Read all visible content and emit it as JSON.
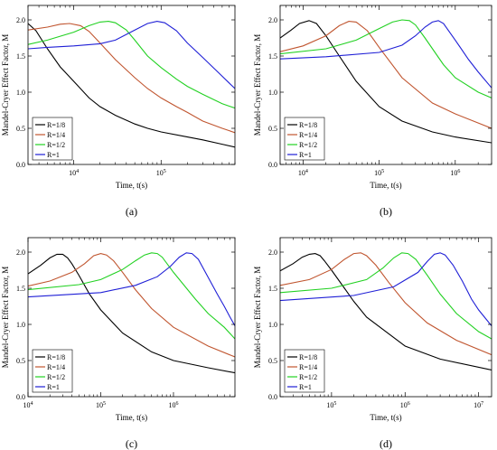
{
  "figure": {
    "y_label": "Mandel-Cryer Effect Factor, M",
    "x_label": "Time, t(s)",
    "legend": [
      "R=1/8",
      "R=1/4",
      "R=1/2",
      "R=1"
    ],
    "series_colors": [
      "#000000",
      "#c0552f",
      "#22d122",
      "#1f1fd6"
    ]
  },
  "chart_data": [
    {
      "type": "line",
      "panel_label": "(a)",
      "xlabel": "Time, t(s)",
      "ylabel": "Mandel-Cryer Effect Factor, M",
      "x_scale": "log",
      "xlim": [
        3000,
        700000
      ],
      "ylim": [
        0.0,
        2.2
      ],
      "xticks": [
        10000,
        100000
      ],
      "xtick_labels": [
        "10^4",
        "10^5"
      ],
      "yticks": [
        0.0,
        0.5,
        1.0,
        1.5,
        2.0
      ],
      "legend_position": "bottom-left",
      "series": [
        {
          "name": "R=1/8",
          "color": "#000000",
          "x": [
            3000,
            3700,
            5000,
            7000,
            10000,
            15000,
            20000,
            30000,
            50000,
            70000,
            100000,
            200000,
            300000,
            500000,
            700000
          ],
          "y": [
            1.95,
            1.85,
            1.6,
            1.35,
            1.15,
            0.92,
            0.8,
            0.68,
            0.56,
            0.5,
            0.45,
            0.38,
            0.34,
            0.28,
            0.24
          ]
        },
        {
          "name": "R=1/4",
          "color": "#c0552f",
          "x": [
            3000,
            5000,
            7000,
            9000,
            12000,
            15000,
            20000,
            30000,
            50000,
            70000,
            100000,
            150000,
            200000,
            300000,
            500000,
            700000
          ],
          "y": [
            1.86,
            1.9,
            1.94,
            1.95,
            1.92,
            1.84,
            1.68,
            1.45,
            1.2,
            1.05,
            0.92,
            0.8,
            0.72,
            0.6,
            0.5,
            0.44
          ]
        },
        {
          "name": "R=1/2",
          "color": "#22d122",
          "x": [
            3000,
            5000,
            10000,
            15000,
            20000,
            25000,
            30000,
            40000,
            50000,
            70000,
            100000,
            150000,
            200000,
            300000,
            500000,
            700000
          ],
          "y": [
            1.66,
            1.72,
            1.83,
            1.92,
            1.97,
            1.98,
            1.96,
            1.86,
            1.72,
            1.5,
            1.34,
            1.18,
            1.08,
            0.97,
            0.84,
            0.78
          ]
        },
        {
          "name": "R=1",
          "color": "#1f1fd6",
          "x": [
            3000,
            5000,
            10000,
            20000,
            30000,
            50000,
            70000,
            90000,
            110000,
            150000,
            200000,
            300000,
            500000,
            700000
          ],
          "y": [
            1.6,
            1.62,
            1.64,
            1.67,
            1.72,
            1.86,
            1.95,
            1.98,
            1.96,
            1.85,
            1.68,
            1.48,
            1.22,
            1.05
          ]
        }
      ]
    },
    {
      "type": "line",
      "panel_label": "(b)",
      "xlabel": "Time, t(s)",
      "ylabel": "Mandel-Cryer Effect Factor, M",
      "x_scale": "log",
      "xlim": [
        5000,
        3000000
      ],
      "ylim": [
        0.0,
        2.2
      ],
      "xticks": [
        10000,
        100000,
        1000000
      ],
      "xtick_labels": [
        "10^4",
        "10^5",
        "10^6"
      ],
      "yticks": [
        0.0,
        0.5,
        1.0,
        1.5,
        2.0
      ],
      "legend_position": "bottom-left",
      "series": [
        {
          "name": "R=1/8",
          "color": "#000000",
          "x": [
            5000,
            7000,
            9000,
            12000,
            15000,
            20000,
            30000,
            50000,
            100000,
            200000,
            500000,
            1000000,
            3000000
          ],
          "y": [
            1.75,
            1.86,
            1.95,
            1.99,
            1.95,
            1.78,
            1.5,
            1.15,
            0.8,
            0.6,
            0.45,
            0.38,
            0.3
          ]
        },
        {
          "name": "R=1/4",
          "color": "#c0552f",
          "x": [
            5000,
            10000,
            20000,
            30000,
            40000,
            50000,
            70000,
            100000,
            200000,
            500000,
            1000000,
            3000000
          ],
          "y": [
            1.56,
            1.64,
            1.78,
            1.92,
            1.98,
            1.97,
            1.85,
            1.62,
            1.2,
            0.85,
            0.7,
            0.5
          ]
        },
        {
          "name": "R=1/2",
          "color": "#22d122",
          "x": [
            5000,
            20000,
            50000,
            100000,
            150000,
            200000,
            250000,
            300000,
            400000,
            700000,
            1000000,
            2000000,
            3000000
          ],
          "y": [
            1.53,
            1.6,
            1.72,
            1.88,
            1.97,
            2.0,
            1.99,
            1.93,
            1.75,
            1.38,
            1.2,
            1.0,
            0.92
          ]
        },
        {
          "name": "R=1",
          "color": "#1f1fd6",
          "x": [
            5000,
            20000,
            100000,
            200000,
            300000,
            400000,
            500000,
            600000,
            700000,
            1000000,
            1500000,
            2000000,
            3000000
          ],
          "y": [
            1.46,
            1.49,
            1.55,
            1.65,
            1.78,
            1.9,
            1.97,
            1.99,
            1.95,
            1.72,
            1.45,
            1.28,
            1.06
          ]
        }
      ]
    },
    {
      "type": "line",
      "panel_label": "(c)",
      "xlabel": "Time, t(s)",
      "ylabel": "Mandel-Cryer Effect Factor, M",
      "x_scale": "log",
      "xlim": [
        10000,
        7000000
      ],
      "ylim": [
        0.0,
        2.2
      ],
      "xticks": [
        10000,
        100000,
        1000000
      ],
      "xtick_labels": [
        "10^4",
        "10^5",
        "10^6"
      ],
      "yticks": [
        0.0,
        0.5,
        1.0,
        1.5,
        2.0
      ],
      "legend_position": "bottom-left",
      "series": [
        {
          "name": "R=1/8",
          "color": "#000000",
          "x": [
            10000,
            15000,
            20000,
            25000,
            30000,
            35000,
            40000,
            50000,
            70000,
            100000,
            200000,
            500000,
            1000000,
            3000000,
            7000000
          ],
          "y": [
            1.7,
            1.82,
            1.92,
            1.97,
            1.97,
            1.92,
            1.84,
            1.68,
            1.42,
            1.2,
            0.88,
            0.62,
            0.5,
            0.4,
            0.33
          ]
        },
        {
          "name": "R=1/4",
          "color": "#c0552f",
          "x": [
            10000,
            20000,
            40000,
            60000,
            80000,
            100000,
            120000,
            150000,
            200000,
            300000,
            500000,
            1000000,
            3000000,
            7000000
          ],
          "y": [
            1.53,
            1.6,
            1.72,
            1.84,
            1.95,
            1.98,
            1.96,
            1.88,
            1.72,
            1.48,
            1.22,
            0.96,
            0.7,
            0.55
          ]
        },
        {
          "name": "R=1/2",
          "color": "#22d122",
          "x": [
            10000,
            50000,
            100000,
            200000,
            300000,
            400000,
            500000,
            600000,
            700000,
            1000000,
            2000000,
            3000000,
            5000000,
            7000000
          ],
          "y": [
            1.48,
            1.55,
            1.62,
            1.76,
            1.88,
            1.96,
            1.99,
            1.98,
            1.93,
            1.72,
            1.35,
            1.15,
            0.96,
            0.8
          ]
        },
        {
          "name": "R=1",
          "color": "#1f1fd6",
          "x": [
            10000,
            100000,
            300000,
            600000,
            900000,
            1200000,
            1500000,
            1800000,
            2200000,
            3000000,
            4000000,
            5000000,
            6000000,
            7000000
          ],
          "y": [
            1.38,
            1.44,
            1.54,
            1.66,
            1.8,
            1.93,
            1.99,
            1.98,
            1.9,
            1.65,
            1.42,
            1.25,
            1.1,
            0.98
          ]
        }
      ]
    },
    {
      "type": "line",
      "panel_label": "(d)",
      "xlabel": "Time, t(s)",
      "ylabel": "Mandel-Cryer Effect Factor, M",
      "x_scale": "log",
      "xlim": [
        20000,
        15000000
      ],
      "ylim": [
        0.0,
        2.2
      ],
      "xticks": [
        100000,
        1000000,
        10000000
      ],
      "xtick_labels": [
        "10^5",
        "10^6",
        "10^7"
      ],
      "yticks": [
        0.0,
        0.5,
        1.0,
        1.5,
        2.0
      ],
      "legend_position": "bottom-left",
      "series": [
        {
          "name": "R=1/8",
          "color": "#000000",
          "x": [
            20000,
            30000,
            40000,
            50000,
            60000,
            70000,
            80000,
            100000,
            150000,
            200000,
            300000,
            1000000,
            3000000,
            15000000
          ],
          "y": [
            1.74,
            1.84,
            1.93,
            1.97,
            1.98,
            1.95,
            1.88,
            1.75,
            1.5,
            1.32,
            1.1,
            0.7,
            0.52,
            0.37
          ]
        },
        {
          "name": "R=1/4",
          "color": "#c0552f",
          "x": [
            20000,
            50000,
            100000,
            150000,
            200000,
            250000,
            300000,
            400000,
            600000,
            1000000,
            2000000,
            5000000,
            15000000
          ],
          "y": [
            1.54,
            1.62,
            1.76,
            1.9,
            1.98,
            1.99,
            1.95,
            1.82,
            1.58,
            1.3,
            1.02,
            0.78,
            0.58
          ]
        },
        {
          "name": "R=1/2",
          "color": "#22d122",
          "x": [
            20000,
            100000,
            300000,
            500000,
            700000,
            900000,
            1100000,
            1400000,
            2000000,
            3000000,
            5000000,
            10000000,
            15000000
          ],
          "y": [
            1.44,
            1.5,
            1.62,
            1.78,
            1.92,
            1.99,
            1.98,
            1.9,
            1.68,
            1.42,
            1.15,
            0.9,
            0.8
          ]
        },
        {
          "name": "R=1",
          "color": "#1f1fd6",
          "x": [
            20000,
            200000,
            700000,
            1500000,
            2000000,
            2500000,
            3000000,
            3500000,
            4500000,
            6000000,
            8000000,
            10000000,
            15000000
          ],
          "y": [
            1.33,
            1.4,
            1.52,
            1.72,
            1.87,
            1.97,
            1.99,
            1.96,
            1.82,
            1.6,
            1.35,
            1.2,
            0.98
          ]
        }
      ]
    }
  ]
}
